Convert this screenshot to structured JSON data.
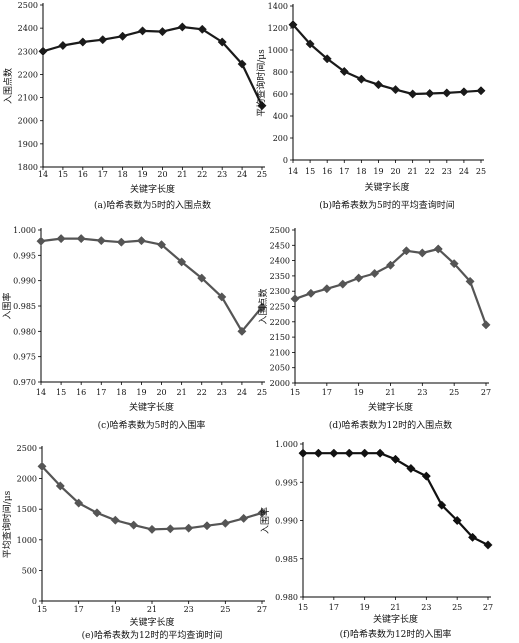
{
  "chart_data": [
    {
      "type": "line",
      "caption": "(a)哈希表数为5时的入围点数",
      "xlabel": "关键字长度",
      "ylabel": "入围点数",
      "x": [
        14,
        15,
        16,
        17,
        18,
        19,
        20,
        21,
        22,
        23,
        24,
        25
      ],
      "xticks": [
        14,
        15,
        16,
        17,
        18,
        19,
        20,
        21,
        22,
        23,
        24,
        25
      ],
      "xlim": [
        14,
        25
      ],
      "yticks": [
        1800,
        1900,
        2000,
        2100,
        2200,
        2300,
        2400,
        2500
      ],
      "ylim": [
        1800,
        2500
      ],
      "series": [
        {
          "values": [
            2300,
            2325,
            2340,
            2350,
            2365,
            2388,
            2385,
            2405,
            2395,
            2340,
            2245,
            2065
          ]
        }
      ],
      "line_color": "#1a1a1a"
    },
    {
      "type": "line",
      "caption": "(b)哈希表数为5时的平均查询时间",
      "xlabel": "关键字长度",
      "ylabel": "平均查询时间/μs",
      "x": [
        14,
        15,
        16,
        17,
        18,
        19,
        20,
        21,
        22,
        23,
        24,
        25
      ],
      "xticks": [
        14,
        15,
        16,
        17,
        18,
        19,
        20,
        21,
        22,
        23,
        24,
        25
      ],
      "xlim": [
        14,
        25
      ],
      "yticks": [
        0,
        200,
        400,
        600,
        800,
        1000,
        1200,
        1400
      ],
      "ylim": [
        0,
        1400
      ],
      "series": [
        {
          "values": [
            1230,
            1055,
            920,
            805,
            735,
            685,
            640,
            600,
            605,
            610,
            620,
            630
          ]
        }
      ],
      "line_color": "#1a1a1a"
    },
    {
      "type": "line",
      "caption": "(c)哈希表数为5时的入围率",
      "xlabel": "关键字长度",
      "ylabel": "入围率",
      "x": [
        14,
        15,
        16,
        17,
        18,
        19,
        20,
        21,
        22,
        23,
        24,
        25
      ],
      "xticks": [
        14,
        15,
        16,
        17,
        18,
        19,
        20,
        21,
        22,
        23,
        24,
        25
      ],
      "xlim": [
        14,
        25
      ],
      "yticks": [
        "0.970",
        "0.975",
        "0.980",
        "0.985",
        "0.990",
        "0.995",
        "1.000"
      ],
      "ylim": [
        0.97,
        1.0
      ],
      "series": [
        {
          "values": [
            0.9978,
            0.9983,
            0.9983,
            0.9979,
            0.9976,
            0.9979,
            0.9971,
            0.9937,
            0.9905,
            0.9868,
            0.98,
            0.9848
          ]
        }
      ],
      "line_color": "#555555"
    },
    {
      "type": "line",
      "caption": "(d)哈希表数为12时的入围点数",
      "xlabel": "关键字长度",
      "ylabel": "入围点数",
      "x": [
        15,
        16,
        17,
        18,
        19,
        20,
        21,
        22,
        23,
        24,
        25,
        26,
        27
      ],
      "xticks": [
        15,
        17,
        19,
        21,
        23,
        25,
        27
      ],
      "xlim": [
        15,
        27
      ],
      "yticks": [
        2000,
        2050,
        2100,
        2150,
        2200,
        2250,
        2300,
        2350,
        2400,
        2450,
        2500
      ],
      "ylim": [
        2000,
        2500
      ],
      "series": [
        {
          "values": [
            2275,
            2293,
            2308,
            2323,
            2343,
            2358,
            2385,
            2432,
            2425,
            2438,
            2390,
            2332,
            2190
          ]
        }
      ],
      "line_color": "#555555"
    },
    {
      "type": "line",
      "caption": "(e)哈希表数为12时的平均查询时间",
      "xlabel": "关键字长度",
      "ylabel": "平均查询时间/μs",
      "x": [
        15,
        16,
        17,
        18,
        19,
        20,
        21,
        22,
        23,
        24,
        25,
        26,
        27
      ],
      "xticks": [
        15,
        17,
        19,
        21,
        23,
        25,
        27
      ],
      "xlim": [
        15,
        27
      ],
      "yticks": [
        0,
        500,
        1000,
        1500,
        2000,
        2500
      ],
      "ylim": [
        0,
        2500
      ],
      "series": [
        {
          "values": [
            2200,
            1880,
            1600,
            1440,
            1320,
            1240,
            1170,
            1180,
            1190,
            1230,
            1270,
            1350,
            1440
          ]
        }
      ],
      "line_color": "#555555"
    },
    {
      "type": "line",
      "caption": "(f)哈希表数为12时的入围率",
      "xlabel": "关键字长度",
      "ylabel": "入围率",
      "x": [
        15,
        16,
        17,
        18,
        19,
        20,
        21,
        22,
        23,
        24,
        25,
        26,
        27
      ],
      "xticks": [
        15,
        17,
        19,
        21,
        23,
        25,
        27
      ],
      "xlim": [
        15,
        27
      ],
      "yticks": [
        "0.980",
        "0.985",
        "0.990",
        "0.995",
        "1.000"
      ],
      "ylim": [
        0.98,
        1.0
      ],
      "series": [
        {
          "values": [
            0.9988,
            0.9988,
            0.9988,
            0.9988,
            0.9988,
            0.9988,
            0.998,
            0.9968,
            0.9958,
            0.992,
            0.99,
            0.9878,
            0.9868
          ]
        }
      ],
      "line_color": "#111111"
    }
  ]
}
